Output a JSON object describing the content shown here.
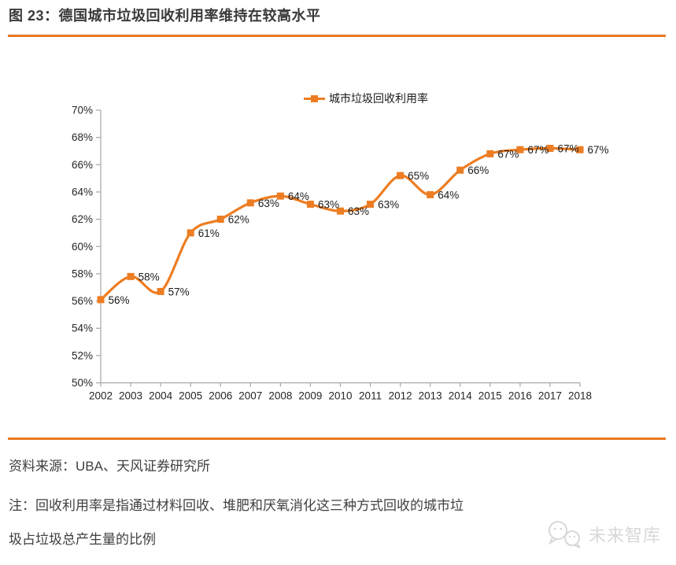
{
  "page": {
    "title": "图 23：德国城市垃圾回收利用率维持在较高水平",
    "source_label": "资料来源：UBA、天风证券研究所",
    "note_line1": "注：回收利用率是指通过材料回收、堆肥和厌氧消化这三种方式回收的城市垃",
    "note_line2": "圾占垃圾总产生量的比例",
    "watermark_text": "未来智库"
  },
  "colors": {
    "accent_orange": "#ED7D22",
    "rule_orange": "#E87722",
    "title_text": "#3A3A3A",
    "body_text": "#3F3F3F",
    "axis_line": "#A6A6A6",
    "axis_text": "#262626",
    "data_label_text": "#1A1A1A",
    "watermark_gray": "#D8D8D8"
  },
  "chart_data": {
    "type": "line",
    "smooth": true,
    "marker": "square",
    "grid": false,
    "legend_position": "top",
    "title": "",
    "xlabel": "",
    "ylabel": "",
    "categories": [
      "2002",
      "2003",
      "2004",
      "2005",
      "2006",
      "2007",
      "2008",
      "2009",
      "2010",
      "2011",
      "2012",
      "2013",
      "2014",
      "2015",
      "2016",
      "2017",
      "2018"
    ],
    "series": [
      {
        "name": "城市垃圾回收利用率",
        "values": [
          56.1,
          57.8,
          56.7,
          61.0,
          62.0,
          63.2,
          63.7,
          63.1,
          62.6,
          63.1,
          65.2,
          63.8,
          65.6,
          66.8,
          67.1,
          67.2,
          67.1
        ],
        "point_labels": [
          "56%",
          "58%",
          "57%",
          "61%",
          "62%",
          "63%",
          "64%",
          "63%",
          "63%",
          "63%",
          "65%",
          "64%",
          "66%",
          "67%",
          "67%",
          "67%",
          "67%"
        ]
      }
    ],
    "ylim": [
      50,
      70
    ],
    "ytick_step": 2,
    "ytick_suffix": "%"
  }
}
